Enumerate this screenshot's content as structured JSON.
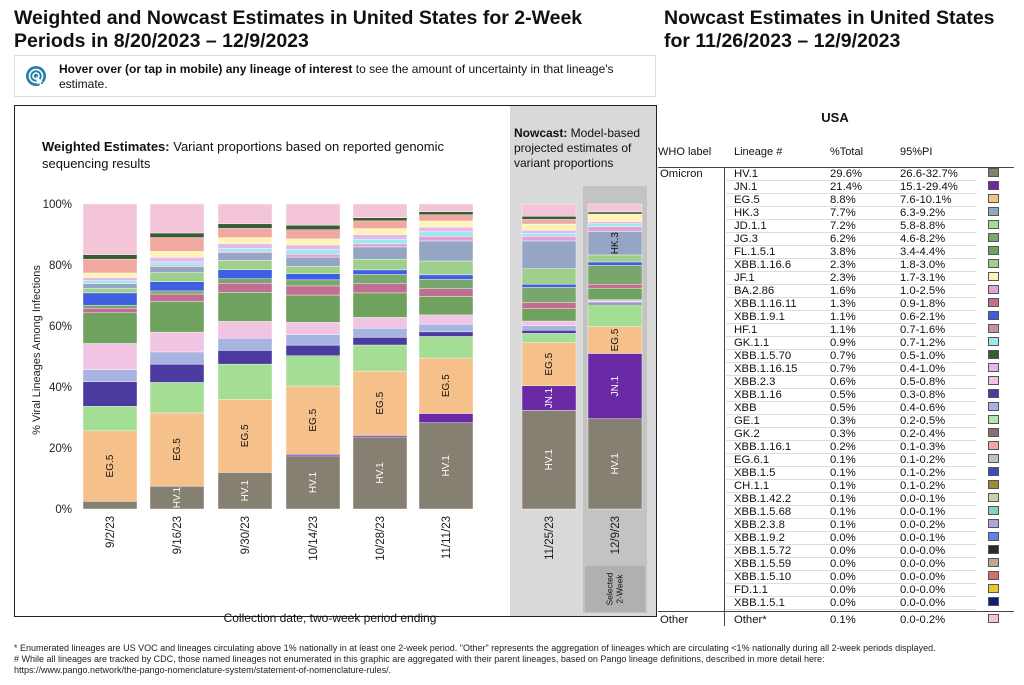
{
  "titles": {
    "left": "Weighted and Nowcast Estimates in United States for 2-Week Periods in 8/20/2023 – 12/9/2023",
    "right": "Nowcast Estimates in United States for 11/26/2023 – 12/9/2023"
  },
  "info": {
    "bold": "Hover over (or tap in mobile) any lineage of interest",
    "rest": " to see the amount of uncertainty in that lineage's estimate."
  },
  "weighted_label": {
    "bold": "Weighted Estimates:",
    "rest": " Variant proportions based on reported genomic sequencing results"
  },
  "nowcast_label": {
    "bold": "Nowcast:",
    "rest": " Model-based projected estimates of variant proportions"
  },
  "selected_label": "Selected\n2-Week",
  "colors": {
    "HV.1": "#868072",
    "JN.1": "#6b2aa5",
    "EG.5": "#f5c08a",
    "HK.3": "#95a6c4",
    "JD.1.1": "#a4dd94",
    "JG.3": "#79a66d",
    "FL.1.5.1": "#6fa25f",
    "XBB.1.16.6": "#9ecf8c",
    "JF.1": "#fff3b5",
    "BA.2.86": "#e3a2d6",
    "XBB.1.16.11": "#c06e92",
    "XBB.1.9.1": "#3f5ee0",
    "HF.1": "#c8909d",
    "GK.1.1": "#9ceaea",
    "XBB.1.5.70": "#3b5a36",
    "XBB.1.16.15": "#e5b6f0",
    "XBB.2.3": "#f0c4e2",
    "XBB.1.16": "#4b3aa0",
    "XBB": "#a8b4e0",
    "GE.1": "#b7e3b0",
    "GK.2": "#8c7070",
    "XBB.1.16.1": "#f0a8a0",
    "EG.6.1": "#c0c0c0",
    "XBB.1.5": "#3b4db8",
    "CH.1.1": "#9a8a3a",
    "XBB.1.42.2": "#c4d4a4",
    "XBB.1.5.68": "#8ad0c0",
    "XBB.2.3.8": "#b0a4e0",
    "XBB.1.9.2": "#5c84e8",
    "XBB.1.5.72": "#2a2a2a",
    "XBB.1.5.59": "#c0a88a",
    "XBB.1.5.10": "#d07070",
    "FD.1.1": "#e8c830",
    "XBB.1.5.1": "#0d1f7a",
    "Other*": "#f4c4d8"
  },
  "chart_data": {
    "type": "bar",
    "stacked": true,
    "xlabel": "Collection date, two-week period ending",
    "ylabel": "% Viral Lineages Among Infections",
    "ylim": [
      0,
      100
    ],
    "yticks": [
      "0%",
      "20%",
      "40%",
      "60%",
      "80%",
      "100%"
    ],
    "categories": [
      "9/2/23",
      "9/16/23",
      "9/30/23",
      "10/14/23",
      "10/28/23",
      "11/11/23",
      "11/25/23",
      "12/9/23"
    ],
    "nowcast_categories": [
      "11/25/23",
      "12/9/23"
    ],
    "selected_category": "12/9/23",
    "series": [
      {
        "name": "HV.1",
        "values": [
          2.5,
          7.5,
          12,
          17.5,
          23.5,
          28,
          32,
          29.6
        ]
      },
      {
        "name": "JN.1",
        "values": [
          0,
          0,
          0,
          0.5,
          0.5,
          3,
          8,
          21.4
        ]
      },
      {
        "name": "EG.5",
        "values": [
          23,
          24,
          24,
          22.5,
          21,
          18,
          14,
          8.8
        ]
      },
      {
        "name": "JD.1.1",
        "values": [
          8,
          10,
          11.5,
          10,
          8.5,
          7,
          3,
          7.2
        ]
      },
      {
        "name": "XBB.1.16",
        "values": [
          8,
          6,
          4.5,
          3.5,
          2.5,
          1.5,
          1,
          0.5
        ]
      },
      {
        "name": "XBB",
        "values": [
          4,
          4,
          4,
          3.5,
          3,
          2.5,
          1.5,
          0.5
        ]
      },
      {
        "name": "XBB.2.3",
        "values": [
          8.5,
          6.5,
          5.5,
          4,
          3.5,
          3,
          1.5,
          0.6
        ]
      },
      {
        "name": "FL.1.5.1",
        "values": [
          10,
          10,
          9.5,
          9,
          8,
          6,
          4,
          3.8
        ]
      },
      {
        "name": "XBB.1.16.11",
        "values": [
          1.5,
          2.5,
          3,
          3,
          3,
          2.5,
          2,
          1.3
        ]
      },
      {
        "name": "JG.3",
        "values": [
          1,
          1,
          1.5,
          2,
          3,
          3,
          5,
          6.2
        ]
      },
      {
        "name": "XBB.1.9.1",
        "values": [
          4,
          3,
          3,
          2,
          1.5,
          1.5,
          1,
          1.1
        ]
      },
      {
        "name": "XBB.1.16.6",
        "values": [
          1.5,
          3,
          3,
          2.5,
          3.5,
          4.5,
          5,
          2.3
        ]
      },
      {
        "name": "HK.3",
        "values": [
          1.5,
          2,
          2.5,
          3,
          4,
          6.5,
          9,
          7.7
        ]
      },
      {
        "name": "BA.2.86",
        "values": [
          0,
          0.5,
          0.5,
          1,
          1,
          1.5,
          1.5,
          1.6
        ]
      },
      {
        "name": "GK.1.1",
        "values": [
          1,
          1,
          1,
          1.5,
          1.5,
          1.5,
          1,
          0.9
        ]
      },
      {
        "name": "XBB.1.16.15",
        "values": [
          1,
          1.5,
          1.5,
          1.5,
          1.5,
          1.5,
          1,
          0.7
        ]
      },
      {
        "name": "JF.1",
        "values": [
          1.5,
          2,
          2,
          2,
          2,
          2,
          2,
          2.3
        ]
      },
      {
        "name": "XBB.1.16.1",
        "values": [
          4.5,
          4.5,
          3,
          3,
          2.5,
          2,
          1.5,
          0.2
        ]
      },
      {
        "name": "XBB.1.5.70",
        "values": [
          1.5,
          1.5,
          1.5,
          1.5,
          1,
          1,
          1,
          0.7
        ]
      },
      {
        "name": "Other*",
        "values": [
          16.5,
          9.5,
          6.5,
          7,
          4.5,
          2.5,
          4,
          2.6
        ]
      }
    ],
    "bar_labels": [
      {
        "category": "9/2/23",
        "series": "EG.5",
        "text": "EG.5"
      },
      {
        "category": "9/16/23",
        "series": "HV.1",
        "text": "HV.1"
      },
      {
        "category": "9/16/23",
        "series": "EG.5",
        "text": "EG.5"
      },
      {
        "category": "9/30/23",
        "series": "HV.1",
        "text": "HV.1"
      },
      {
        "category": "9/30/23",
        "series": "EG.5",
        "text": "EG.5"
      },
      {
        "category": "10/14/23",
        "series": "HV.1",
        "text": "HV.1"
      },
      {
        "category": "10/14/23",
        "series": "EG.5",
        "text": "EG.5"
      },
      {
        "category": "10/28/23",
        "series": "HV.1",
        "text": "HV.1"
      },
      {
        "category": "10/28/23",
        "series": "EG.5",
        "text": "EG.5"
      },
      {
        "category": "11/11/23",
        "series": "HV.1",
        "text": "HV.1"
      },
      {
        "category": "11/11/23",
        "series": "EG.5",
        "text": "EG.5"
      },
      {
        "category": "11/25/23",
        "series": "HV.1",
        "text": "HV.1"
      },
      {
        "category": "11/25/23",
        "series": "JN.1",
        "text": "JN.1"
      },
      {
        "category": "11/25/23",
        "series": "EG.5",
        "text": "EG.5"
      },
      {
        "category": "12/9/23",
        "series": "HV.1",
        "text": "HV.1"
      },
      {
        "category": "12/9/23",
        "series": "JN.1",
        "text": "JN.1"
      },
      {
        "category": "12/9/23",
        "series": "EG.5",
        "text": "EG.5"
      },
      {
        "category": "12/9/23",
        "series": "HK.3",
        "text": "HK.3"
      }
    ]
  },
  "table": {
    "title": "USA",
    "headers": [
      "WHO label",
      "Lineage #",
      "%Total",
      "95%PI"
    ],
    "rows": [
      {
        "who": "Omicron",
        "lineage": "HV.1",
        "pct": "29.6%",
        "pi": "26.6-32.7%"
      },
      {
        "who": "",
        "lineage": "JN.1",
        "pct": "21.4%",
        "pi": "15.1-29.4%"
      },
      {
        "who": "",
        "lineage": "EG.5",
        "pct": "8.8%",
        "pi": "7.6-10.1%"
      },
      {
        "who": "",
        "lineage": "HK.3",
        "pct": "7.7%",
        "pi": "6.3-9.2%"
      },
      {
        "who": "",
        "lineage": "JD.1.1",
        "pct": "7.2%",
        "pi": "5.8-8.8%"
      },
      {
        "who": "",
        "lineage": "JG.3",
        "pct": "6.2%",
        "pi": "4.6-8.2%"
      },
      {
        "who": "",
        "lineage": "FL.1.5.1",
        "pct": "3.8%",
        "pi": "3.4-4.4%"
      },
      {
        "who": "",
        "lineage": "XBB.1.16.6",
        "pct": "2.3%",
        "pi": "1.8-3.0%"
      },
      {
        "who": "",
        "lineage": "JF.1",
        "pct": "2.3%",
        "pi": "1.7-3.1%"
      },
      {
        "who": "",
        "lineage": "BA.2.86",
        "pct": "1.6%",
        "pi": "1.0-2.5%"
      },
      {
        "who": "",
        "lineage": "XBB.1.16.11",
        "pct": "1.3%",
        "pi": "0.9-1.8%"
      },
      {
        "who": "",
        "lineage": "XBB.1.9.1",
        "pct": "1.1%",
        "pi": "0.6-2.1%"
      },
      {
        "who": "",
        "lineage": "HF.1",
        "pct": "1.1%",
        "pi": "0.7-1.6%"
      },
      {
        "who": "",
        "lineage": "GK.1.1",
        "pct": "0.9%",
        "pi": "0.7-1.2%"
      },
      {
        "who": "",
        "lineage": "XBB.1.5.70",
        "pct": "0.7%",
        "pi": "0.5-1.0%"
      },
      {
        "who": "",
        "lineage": "XBB.1.16.15",
        "pct": "0.7%",
        "pi": "0.4-1.0%"
      },
      {
        "who": "",
        "lineage": "XBB.2.3",
        "pct": "0.6%",
        "pi": "0.5-0.8%"
      },
      {
        "who": "",
        "lineage": "XBB.1.16",
        "pct": "0.5%",
        "pi": "0.3-0.8%"
      },
      {
        "who": "",
        "lineage": "XBB",
        "pct": "0.5%",
        "pi": "0.4-0.6%"
      },
      {
        "who": "",
        "lineage": "GE.1",
        "pct": "0.3%",
        "pi": "0.2-0.5%"
      },
      {
        "who": "",
        "lineage": "GK.2",
        "pct": "0.3%",
        "pi": "0.2-0.4%"
      },
      {
        "who": "",
        "lineage": "XBB.1.16.1",
        "pct": "0.2%",
        "pi": "0.1-0.3%"
      },
      {
        "who": "",
        "lineage": "EG.6.1",
        "pct": "0.1%",
        "pi": "0.1-0.2%"
      },
      {
        "who": "",
        "lineage": "XBB.1.5",
        "pct": "0.1%",
        "pi": "0.1-0.2%"
      },
      {
        "who": "",
        "lineage": "CH.1.1",
        "pct": "0.1%",
        "pi": "0.1-0.2%"
      },
      {
        "who": "",
        "lineage": "XBB.1.42.2",
        "pct": "0.1%",
        "pi": "0.0-0.1%"
      },
      {
        "who": "",
        "lineage": "XBB.1.5.68",
        "pct": "0.1%",
        "pi": "0.0-0.1%"
      },
      {
        "who": "",
        "lineage": "XBB.2.3.8",
        "pct": "0.1%",
        "pi": "0.0-0.2%"
      },
      {
        "who": "",
        "lineage": "XBB.1.9.2",
        "pct": "0.0%",
        "pi": "0.0-0.1%"
      },
      {
        "who": "",
        "lineage": "XBB.1.5.72",
        "pct": "0.0%",
        "pi": "0.0-0.0%"
      },
      {
        "who": "",
        "lineage": "XBB.1.5.59",
        "pct": "0.0%",
        "pi": "0.0-0.0%"
      },
      {
        "who": "",
        "lineage": "XBB.1.5.10",
        "pct": "0.0%",
        "pi": "0.0-0.0%"
      },
      {
        "who": "",
        "lineage": "FD.1.1",
        "pct": "0.0%",
        "pi": "0.0-0.0%"
      },
      {
        "who": "",
        "lineage": "XBB.1.5.1",
        "pct": "0.0%",
        "pi": "0.0-0.0%"
      },
      {
        "who": "Other",
        "lineage": "Other*",
        "pct": "0.1%",
        "pi": "0.0-0.2%"
      }
    ]
  },
  "footnotes": [
    "*     Enumerated lineages are US VOC and lineages circulating above 1% nationally in at least one 2-week period. \"Other\" represents the aggregation of lineages which are circulating <1% nationally during all 2-week periods displayed.",
    "#     While all lineages are tracked by CDC, those named lineages not enumerated in this graphic are aggregated with their parent lineages, based on Pango lineage definitions, described in more detail here:",
    "https://www.pango.network/the-pango-nomenclature-system/statement-of-nomenclature-rules/."
  ]
}
